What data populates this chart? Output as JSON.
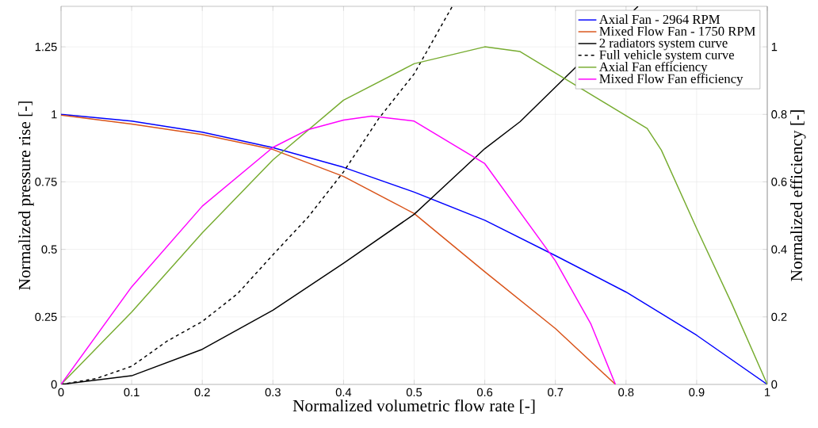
{
  "chart_data": {
    "type": "line",
    "xlabel": "Normalized volumetric flow rate [-]",
    "ylabel": "Normalized pressure rise [-]",
    "y2label": "Normalized efficiency [-]",
    "xlim": [
      0,
      1
    ],
    "xticks": [
      0,
      0.1,
      0.2,
      0.3,
      0.4,
      0.5,
      0.6,
      0.7,
      0.8,
      0.9,
      1
    ],
    "ylim": [
      0,
      1.4
    ],
    "yticks": [
      0,
      0.25,
      0.5,
      0.75,
      1,
      1.25
    ],
    "y2lim": [
      0,
      1.12
    ],
    "y2ticks": [
      0,
      0.2,
      0.4,
      0.6,
      0.8,
      1
    ],
    "grid": true,
    "legend": "top right",
    "series": [
      {
        "name": "Axial Fan - 2964 RPM",
        "color": "#0000ff",
        "line_style": "solid",
        "axis": "y",
        "x": [
          0,
          0.1,
          0.2,
          0.3,
          0.4,
          0.5,
          0.6,
          0.7,
          0.8,
          0.9,
          1
        ],
        "values": [
          1.0,
          0.975,
          0.934,
          0.877,
          0.804,
          0.712,
          0.608,
          0.477,
          0.342,
          0.182,
          0
        ]
      },
      {
        "name": "Mixed Flow Fan - 1750 RPM",
        "color": "#d95319",
        "line_style": "solid",
        "axis": "y",
        "x": [
          0,
          0.1,
          0.2,
          0.3,
          0.4,
          0.5,
          0.6,
          0.7,
          0.785
        ],
        "values": [
          0.997,
          0.964,
          0.925,
          0.87,
          0.77,
          0.633,
          0.417,
          0.207,
          0
        ]
      },
      {
        "name": "2 radiators system curve",
        "color": "#000000",
        "line_style": "solid",
        "axis": "y",
        "x": [
          0,
          0.1,
          0.2,
          0.3,
          0.4,
          0.5,
          0.6,
          0.65,
          0.817
        ],
        "values": [
          0,
          0.032,
          0.13,
          0.275,
          0.449,
          0.63,
          0.873,
          0.973,
          1.4
        ]
      },
      {
        "name": "Full vehicle system curve",
        "color": "#000000",
        "line_style": "dashed",
        "axis": "y",
        "x": [
          0,
          0.05,
          0.1,
          0.15,
          0.2,
          0.25,
          0.3,
          0.35,
          0.4,
          0.45,
          0.5,
          0.554
        ],
        "values": [
          0,
          0.022,
          0.067,
          0.16,
          0.233,
          0.336,
          0.48,
          0.62,
          0.787,
          0.985,
          1.15,
          1.4
        ]
      },
      {
        "name": "Axial Fan efficiency",
        "color": "#77ac30",
        "line_style": "solid",
        "axis": "y2",
        "x": [
          0,
          0.1,
          0.2,
          0.3,
          0.4,
          0.5,
          0.6,
          0.65,
          0.83,
          0.85,
          0.9,
          0.95,
          1
        ],
        "values": [
          0,
          0.214,
          0.449,
          0.665,
          0.842,
          0.95,
          1.0,
          0.986,
          0.758,
          0.694,
          0.462,
          0.238,
          0
        ]
      },
      {
        "name": "Mixed Flow Fan efficiency",
        "color": "#ff00ff",
        "line_style": "solid",
        "axis": "y2",
        "x": [
          0,
          0.1,
          0.2,
          0.3,
          0.35,
          0.4,
          0.44,
          0.5,
          0.6,
          0.7,
          0.75,
          0.785
        ],
        "values": [
          0,
          0.289,
          0.528,
          0.702,
          0.755,
          0.783,
          0.795,
          0.78,
          0.654,
          0.366,
          0.18,
          0
        ]
      }
    ]
  }
}
